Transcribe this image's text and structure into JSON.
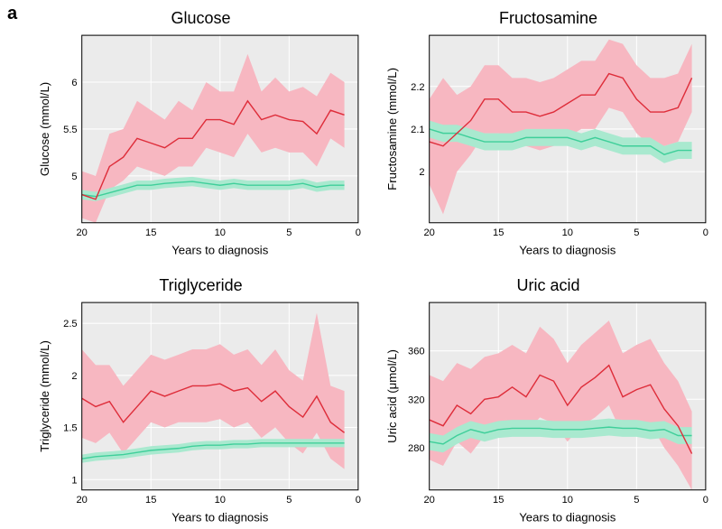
{
  "figure_label": "a",
  "label_fontsize": 20,
  "title_fontsize": 18,
  "tick_fontsize": 11,
  "axis_fontsize": 13,
  "colors": {
    "panel_bg": "#ebebeb",
    "grid": "#ffffff",
    "border": "#000000",
    "red_line": "#de2d3a",
    "red_band": "#f7b7c1",
    "green_line": "#3fcf9a",
    "green_band": "#a9e9cf"
  },
  "panels": [
    {
      "title": "Glucose",
      "ylabel": "Glucose (mmol/L)",
      "xlabel": "Years to diagnosis",
      "x": [
        20,
        19,
        18,
        17,
        16,
        15,
        14,
        13,
        12,
        11,
        10,
        9,
        8,
        7,
        6,
        5,
        4,
        3,
        2,
        1
      ],
      "xlim": [
        20,
        0
      ],
      "ylim": [
        4.5,
        6.5
      ],
      "yticks": [
        5.0,
        5.5,
        6.0
      ],
      "xticks": [
        20,
        15,
        10,
        5,
        0
      ],
      "red": [
        4.8,
        4.75,
        5.1,
        5.2,
        5.4,
        5.35,
        5.3,
        5.4,
        5.4,
        5.6,
        5.6,
        5.55,
        5.8,
        5.6,
        5.65,
        5.6,
        5.58,
        5.45,
        5.7,
        5.65
      ],
      "red_lo": [
        4.55,
        4.5,
        4.85,
        4.95,
        5.1,
        5.05,
        5.0,
        5.1,
        5.1,
        5.3,
        5.25,
        5.2,
        5.45,
        5.25,
        5.3,
        5.25,
        5.25,
        5.1,
        5.4,
        5.3
      ],
      "red_hi": [
        5.05,
        5.0,
        5.45,
        5.5,
        5.8,
        5.7,
        5.6,
        5.8,
        5.7,
        6.0,
        5.9,
        5.9,
        6.3,
        5.9,
        6.05,
        5.9,
        5.95,
        5.85,
        6.1,
        6.0
      ],
      "green": [
        4.8,
        4.78,
        4.82,
        4.86,
        4.9,
        4.9,
        4.92,
        4.93,
        4.94,
        4.92,
        4.9,
        4.92,
        4.9,
        4.9,
        4.9,
        4.9,
        4.92,
        4.88,
        4.9,
        4.9
      ],
      "green_lo": [
        4.75,
        4.73,
        4.77,
        4.81,
        4.85,
        4.85,
        4.87,
        4.88,
        4.89,
        4.87,
        4.85,
        4.87,
        4.85,
        4.85,
        4.85,
        4.85,
        4.87,
        4.83,
        4.85,
        4.85
      ],
      "green_hi": [
        4.85,
        4.83,
        4.87,
        4.91,
        4.95,
        4.95,
        4.97,
        4.98,
        4.99,
        4.97,
        4.95,
        4.97,
        4.95,
        4.95,
        4.95,
        4.95,
        4.97,
        4.93,
        4.95,
        4.95
      ]
    },
    {
      "title": "Fructosamine",
      "ylabel": "Fructosamine (mmol/L)",
      "xlabel": "Years to diagnosis",
      "x": [
        20,
        19,
        18,
        17,
        16,
        15,
        14,
        13,
        12,
        11,
        10,
        9,
        8,
        7,
        6,
        5,
        4,
        3,
        2,
        1
      ],
      "xlim": [
        20,
        0
      ],
      "ylim": [
        1.88,
        2.32
      ],
      "yticks": [
        2.0,
        2.1,
        2.2
      ],
      "xticks": [
        20,
        15,
        10,
        5,
        0
      ],
      "red": [
        2.07,
        2.06,
        2.09,
        2.12,
        2.17,
        2.17,
        2.14,
        2.14,
        2.13,
        2.14,
        2.16,
        2.18,
        2.18,
        2.23,
        2.22,
        2.17,
        2.14,
        2.14,
        2.15,
        2.22
      ],
      "red_lo": [
        1.97,
        1.9,
        2.0,
        2.04,
        2.09,
        2.09,
        2.06,
        2.06,
        2.05,
        2.06,
        2.08,
        2.1,
        2.1,
        2.15,
        2.14,
        2.09,
        2.06,
        2.06,
        2.07,
        2.14
      ],
      "red_hi": [
        2.17,
        2.22,
        2.18,
        2.2,
        2.25,
        2.25,
        2.22,
        2.22,
        2.21,
        2.22,
        2.24,
        2.26,
        2.26,
        2.31,
        2.3,
        2.25,
        2.22,
        2.22,
        2.23,
        2.3
      ],
      "green": [
        2.1,
        2.09,
        2.09,
        2.08,
        2.07,
        2.07,
        2.07,
        2.08,
        2.08,
        2.08,
        2.08,
        2.07,
        2.08,
        2.07,
        2.06,
        2.06,
        2.06,
        2.04,
        2.05,
        2.05
      ],
      "green_lo": [
        2.08,
        2.07,
        2.07,
        2.06,
        2.05,
        2.05,
        2.05,
        2.06,
        2.06,
        2.06,
        2.06,
        2.05,
        2.06,
        2.05,
        2.04,
        2.04,
        2.04,
        2.02,
        2.03,
        2.03
      ],
      "green_hi": [
        2.12,
        2.11,
        2.11,
        2.1,
        2.09,
        2.09,
        2.09,
        2.1,
        2.1,
        2.1,
        2.1,
        2.09,
        2.1,
        2.09,
        2.08,
        2.08,
        2.08,
        2.06,
        2.07,
        2.07
      ]
    },
    {
      "title": "Triglyceride",
      "ylabel": "Triglyceride (mmol/L)",
      "xlabel": "Years to diagnosis",
      "x": [
        20,
        19,
        18,
        17,
        16,
        15,
        14,
        13,
        12,
        11,
        10,
        9,
        8,
        7,
        6,
        5,
        4,
        3,
        2,
        1
      ],
      "xlim": [
        20,
        0
      ],
      "ylim": [
        0.9,
        2.7
      ],
      "yticks": [
        1.0,
        1.5,
        2.0,
        2.5
      ],
      "xticks": [
        20,
        15,
        10,
        5,
        0
      ],
      "red": [
        1.78,
        1.7,
        1.75,
        1.55,
        1.7,
        1.85,
        1.8,
        1.85,
        1.9,
        1.9,
        1.92,
        1.85,
        1.88,
        1.75,
        1.85,
        1.7,
        1.6,
        1.8,
        1.55,
        1.45
      ],
      "red_lo": [
        1.4,
        1.35,
        1.45,
        1.25,
        1.4,
        1.55,
        1.5,
        1.55,
        1.55,
        1.55,
        1.58,
        1.5,
        1.55,
        1.4,
        1.5,
        1.35,
        1.25,
        1.45,
        1.2,
        1.1
      ],
      "red_hi": [
        2.25,
        2.1,
        2.1,
        1.9,
        2.05,
        2.2,
        2.15,
        2.2,
        2.25,
        2.25,
        2.3,
        2.2,
        2.25,
        2.1,
        2.25,
        2.05,
        1.95,
        2.6,
        1.9,
        1.85
      ],
      "green": [
        1.2,
        1.22,
        1.23,
        1.24,
        1.26,
        1.28,
        1.29,
        1.3,
        1.32,
        1.33,
        1.33,
        1.34,
        1.34,
        1.35,
        1.35,
        1.35,
        1.35,
        1.35,
        1.35,
        1.35
      ],
      "green_lo": [
        1.16,
        1.18,
        1.19,
        1.2,
        1.22,
        1.24,
        1.25,
        1.26,
        1.28,
        1.29,
        1.29,
        1.3,
        1.3,
        1.31,
        1.31,
        1.31,
        1.31,
        1.31,
        1.31,
        1.31
      ],
      "green_hi": [
        1.24,
        1.26,
        1.27,
        1.28,
        1.3,
        1.32,
        1.33,
        1.34,
        1.36,
        1.37,
        1.37,
        1.38,
        1.38,
        1.39,
        1.39,
        1.39,
        1.39,
        1.39,
        1.39,
        1.39
      ]
    },
    {
      "title": "Uric acid",
      "ylabel": "Uric acid (μmol/L)",
      "xlabel": "Years to diagnosis",
      "x": [
        20,
        19,
        18,
        17,
        16,
        15,
        14,
        13,
        12,
        11,
        10,
        9,
        8,
        7,
        6,
        5,
        4,
        3,
        2,
        1
      ],
      "xlim": [
        20,
        0
      ],
      "ylim": [
        245,
        400
      ],
      "yticks": [
        280,
        320,
        360
      ],
      "xticks": [
        20,
        15,
        10,
        5,
        0
      ],
      "red": [
        303,
        298,
        315,
        308,
        320,
        322,
        330,
        322,
        340,
        335,
        315,
        330,
        338,
        348,
        322,
        328,
        332,
        312,
        298,
        275
      ],
      "red_lo": [
        270,
        265,
        285,
        275,
        290,
        290,
        300,
        292,
        305,
        300,
        285,
        298,
        305,
        315,
        290,
        295,
        300,
        280,
        265,
        245
      ],
      "red_hi": [
        340,
        335,
        350,
        345,
        355,
        358,
        365,
        358,
        380,
        370,
        350,
        365,
        375,
        385,
        358,
        365,
        370,
        350,
        335,
        310
      ],
      "green": [
        285,
        283,
        290,
        295,
        292,
        295,
        296,
        296,
        296,
        295,
        295,
        295,
        296,
        297,
        296,
        296,
        294,
        295,
        290,
        290
      ],
      "green_lo": [
        278,
        276,
        283,
        288,
        285,
        288,
        289,
        289,
        289,
        288,
        288,
        288,
        289,
        290,
        289,
        289,
        287,
        288,
        283,
        283
      ],
      "green_hi": [
        292,
        290,
        297,
        302,
        299,
        302,
        303,
        303,
        303,
        302,
        302,
        302,
        303,
        304,
        303,
        303,
        301,
        302,
        297,
        297
      ]
    }
  ]
}
